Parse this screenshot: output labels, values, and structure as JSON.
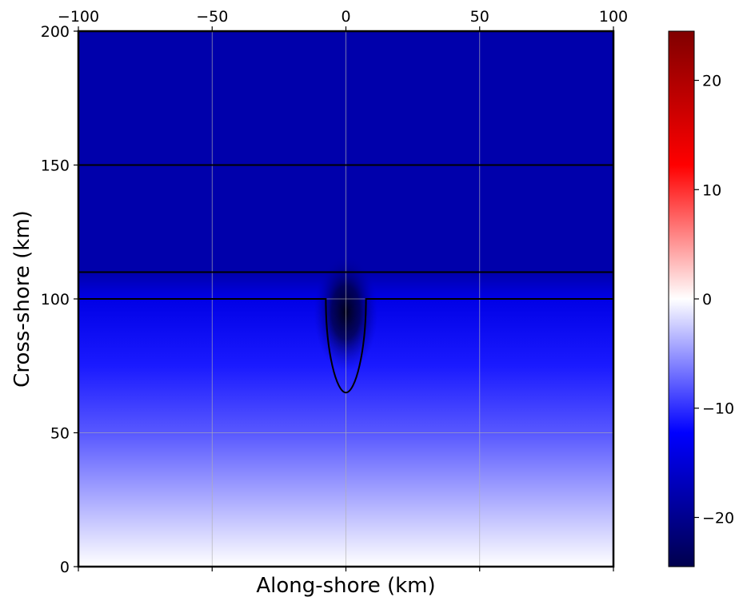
{
  "chart_data": {
    "type": "heatmap",
    "title": "",
    "xlabel": "Along-shore (km)",
    "ylabel": "Cross-shore (km)",
    "xlim": [
      -100,
      100
    ],
    "ylim": [
      0,
      200
    ],
    "x_ticks": [
      -100,
      -50,
      0,
      50,
      100
    ],
    "x_tick_labels": [
      "−100",
      "−50",
      "0",
      "50",
      "100"
    ],
    "x_tick_labels_position": "top",
    "y_ticks": [
      0,
      50,
      100,
      150,
      200
    ],
    "y_tick_labels": [
      "0",
      "50",
      "100",
      "150",
      "200"
    ],
    "grid": true,
    "colormap": "seismic",
    "colorbar": {
      "vmin": -24.5,
      "vmax": 24.5,
      "ticks": [
        -20,
        -10,
        0,
        10,
        20
      ],
      "tick_labels": [
        "−20",
        "−10",
        "0",
        "10",
        "20"
      ],
      "position": "right"
    },
    "field": {
      "description_values": "approximate field values (colorbar units) read from colors",
      "cross_shore_profile": [
        {
          "y": 0,
          "value": 0
        },
        {
          "y": 25,
          "value": -4
        },
        {
          "y": 50,
          "value": -8
        },
        {
          "y": 75,
          "value": -11
        },
        {
          "y": 100,
          "value": -14
        },
        {
          "y": 110,
          "value": -18
        },
        {
          "y": 150,
          "value": -18
        },
        {
          "y": 200,
          "value": -18
        }
      ],
      "anomaly_center": {
        "x": 0,
        "y": 95,
        "value": -24
      }
    },
    "contour_lines": [
      {
        "kind": "horizontal",
        "y": 150
      },
      {
        "kind": "horizontal",
        "y": 110
      },
      {
        "kind": "horizontal_with_notch",
        "y": 100,
        "notch_x_range": [
          -7.5,
          7.5
        ],
        "notch_bottom_y": 65
      }
    ]
  }
}
